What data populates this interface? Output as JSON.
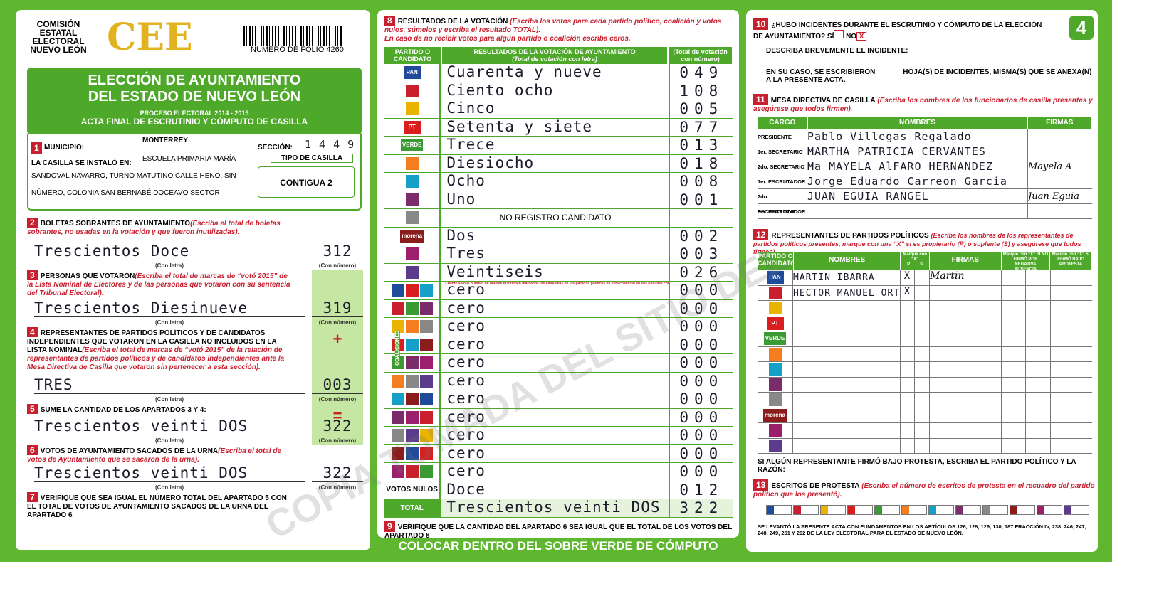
{
  "header": {
    "org": [
      "COMISIÓN",
      "ESTATAL",
      "ELECTORAL",
      "NUEVO LEÓN"
    ],
    "logo": "CEE",
    "folio": "NUMERO DE FOLIO 4260",
    "page": "4"
  },
  "left": {
    "title": [
      "ELECCIÓN DE AYUNTAMIENTO",
      "DEL ESTADO DE NUEVO LEÓN"
    ],
    "process": "PROCESO ELECTORAL  2014 - 2015",
    "act": "ACTA FINAL DE ESCRUTINIO Y CÓMPUTO DE CASILLA",
    "s1": {
      "num": "1",
      "municipio_label": "MUNICIPIO:",
      "municipio": "MONTERREY",
      "seccion_label": "SECCIÓN:",
      "seccion": "1 4 4 9",
      "casilla_label": "LA CASILLA SE INSTALÓ EN:",
      "address": [
        "ESCUELA PRIMARIA MARÍA",
        "SANDOVAL NAVARRO, TURNO MATUTINO CALLE HENO, SIN",
        "NÚMERO, COLONIA SAN BERNABÉ DOCEAVO SECTOR"
      ],
      "tipo_label": "TIPO DE CASILLA",
      "tipo": "CONTIGUA 2"
    },
    "con_letra": "(Con letra)",
    "con_numero": "(Con número)",
    "sections": [
      {
        "num": "2",
        "title": "BOLETAS SOBRANTES DE AYUNTAMIENTO",
        "note": "(Escriba el total de boletas sobrantes, no usadas en la votación y que fueron inutilizadas).",
        "letra": "Trescientos Doce",
        "numero": "312"
      },
      {
        "num": "3",
        "title": "PERSONAS QUE VOTARON",
        "note": "(Escriba el total de marcas de “votó 2015” de la Lista Nominal de Electores y de las personas que votaron con su sentencia del Tribunal Electoral).",
        "letra": "Trescientos Diesinueve",
        "numero": "319"
      },
      {
        "num": "4",
        "title": "REPRESENTANTES DE PARTIDOS POLÍTICOS Y DE CANDIDATOS INDEPENDIENTES QUE VOTARON EN LA CASILLA NO INCLUIDOS EN LA LISTA NOMINAL",
        "note": "(Escriba el total de marcas de “votó 2015” de la relación de representantes de partidos políticos y de candidatos independientes ante la Mesa Directiva de Casilla que votaron sin pertenecer a esta sección).",
        "sign": "+",
        "letra": "TRES",
        "numero": "003"
      },
      {
        "num": "5",
        "title": "SUME LA CANTIDAD DE LOS APARTADOS 3 Y 4:",
        "sign": "=",
        "letra": "Trescientos veinti DOS",
        "numero": "322"
      },
      {
        "num": "6",
        "title": "VOTOS DE AYUNTAMIENTO SACADOS DE LA URNA",
        "note": "(Escriba el total de votos de Ayuntamiento que se sacaron de la urna).",
        "letra": "Trescientos veinti DOS",
        "numero": "322"
      },
      {
        "num": "7",
        "title": "VERIFIQUE QUE SEA IGUAL EL NÚMERO TOTAL DEL APARTADO 5 CON EL TOTAL DE VOTOS DE AYUNTAMIENTO SACADOS DE LA URNA DEL APARTADO 6"
      }
    ]
  },
  "middle": {
    "num": "8",
    "title": "RESULTADOS DE LA VOTACIÓN",
    "note": "(Escriba los votos para cada partido político, coalición y votos nulos, súmelos y escriba el resultado TOTAL).",
    "note2": "En caso de no recibir votos para algún partido o coalición escriba ceros.",
    "headers": [
      "PARTIDO O CANDIDATO",
      "RESULTADOS DE LA VOTACIÓN DE AYUNTAMIENTO",
      "(Total de votación con letra)",
      "(Total de votación con número)"
    ],
    "coalitions_label": "COALICIONES",
    "rows": [
      {
        "logo": "PAN",
        "letra": "Cuarenta y nueve",
        "numero": "049"
      },
      {
        "letra": "Ciento ocho",
        "numero": "108"
      },
      {
        "letra": "Cinco",
        "numero": "005"
      },
      {
        "logo": "PT",
        "letra": "Setenta y siete",
        "numero": "077"
      },
      {
        "logo": "VERDE",
        "letra": "Trece",
        "numero": "013"
      },
      {
        "letra": "Diesiocho",
        "numero": "018"
      },
      {
        "letra": "Ocho",
        "numero": "008"
      },
      {
        "letra": "Uno",
        "numero": "001"
      },
      {
        "note": "NO REGISTRO CANDIDATO"
      },
      {
        "logo": "morena",
        "letra": "Dos",
        "numero": "002"
      },
      {
        "letra": "Tres",
        "numero": "003"
      },
      {
        "letra": "Veintiseis",
        "numero": "026"
      },
      {
        "note": "Cuente solo el número de boletas que tienen marcados los emblemas de los partidos políticos de esta coalición en sus posibles combinaciones",
        "letra": "cero",
        "numero": "000"
      },
      {
        "letra": "cero",
        "numero": "000"
      },
      {
        "letra": "cero",
        "numero": "000"
      },
      {
        "letra": "cero",
        "numero": "000"
      },
      {
        "letra": "cero",
        "numero": "000"
      },
      {
        "letra": "cero",
        "numero": "000"
      },
      {
        "letra": "cero",
        "numero": "000"
      },
      {
        "letra": "cero",
        "numero": "000"
      },
      {
        "letra": "cero",
        "numero": "000"
      },
      {
        "letra": "cero",
        "numero": "000"
      },
      {
        "letra": "cero",
        "numero": "000"
      },
      {
        "label": "VOTOS NULOS",
        "letra": "Doce",
        "numero": "012"
      },
      {
        "label": "TOTAL",
        "letra": "Trescientos veinti DOS",
        "numero": "322"
      }
    ],
    "s9": {
      "num": "9",
      "text": "VERIFIQUE QUE LA CANTIDAD DEL APARTADO 6 SEA IGUAL QUE EL TOTAL DE LOS VOTOS DEL APARTADO 8"
    },
    "footer": "COLOCAR DENTRO DEL SOBRE VERDE DE CÓMPUTO"
  },
  "right": {
    "s10": {
      "num": "10",
      "question": "¿HUBO INCIDENTES DURANTE EL ESCRUTINIO Y CÓMPUTO DE LA ELECCIÓN DE AYUNTAMIENTO?",
      "si": "SÍ",
      "no": "NO",
      "mark": "X",
      "describe": "DESCRIBA BREVEMENTE EL INCIDENTE:",
      "hojas": "EN SU CASO, SE ESCRIBIERON ______ HOJA(S) DE INCIDENTES, MISMA(S) QUE SE ANEXA(N) A LA PRESENTE ACTA."
    },
    "s11": {
      "num": "11",
      "title": "MESA DIRECTIVA DE CASILLA",
      "note": "(Escriba los nombres de los funcionarios de casilla presentes y asegúrese que todos firmen).",
      "headers": [
        "CARGO",
        "NOMBRES",
        "FIRMAS"
      ],
      "rows": [
        {
          "cargo": "PRESIDENTE",
          "nombre": "Pablo Villegas Regalado"
        },
        {
          "cargo": "1er. SECRETARIO",
          "nombre": "MARTHA PATRICIA CERVANTES"
        },
        {
          "cargo": "2do. SECRETARIO",
          "nombre": "Ma MAYELA AlFARO HERNANDEZ",
          "firma": "Mayela A"
        },
        {
          "cargo": "1er. ESCRUTADOR",
          "nombre": "Jorge Eduardo Carreon Garcia"
        },
        {
          "cargo": "2do. ESCRUTADOR",
          "nombre": "JUAN EGUIA RANGEL",
          "firma": "Juan Eguia"
        },
        {
          "cargo": "3er. ESCRUTADOR"
        }
      ]
    },
    "s12": {
      "num": "12",
      "title": "REPRESENTANTES DE PARTIDOS POLÍTICOS",
      "note": "(Escriba los nombres de los representantes de partidos políticos presentes, marque con una “X” si es propietario (P) o suplente (S) y asegúrese que todos firmen).",
      "headers": [
        "PARTIDO O CANDIDATO",
        "NOMBRES",
        "Marque con “X”",
        "P",
        "S",
        "FIRMAS",
        "Marque con “X” SI NO FIRMÓ POR",
        "NEGATIVA",
        "AUSENCIA",
        "Marque con “X” SI FIRMÓ BAJO PROTESTA"
      ],
      "rows": [
        {
          "logo": "PAN",
          "nombre": "MARTIN IBARRA",
          "p": "X",
          "firma": "Martin"
        },
        {
          "nombre": "HECTOR MANUEL ORTIZ",
          "p": "X"
        },
        {},
        {
          "logo": "PT"
        },
        {
          "logo": "VERDE"
        },
        {},
        {},
        {},
        {},
        {
          "logo": "morena"
        },
        {},
        {}
      ]
    },
    "protest": "SI ALGÚN REPRESENTANTE FIRMÓ BAJO PROTESTA, ESCRIBA EL PARTIDO POLÍTICO Y LA RAZÓN:",
    "s13": {
      "num": "13",
      "title": "ESCRITOS DE PROTESTA",
      "note": "(Escriba el número de escritos de protesta en el recuadro del partido político que los presentó)."
    },
    "legal": "SE LEVANTÓ LA PRESENTE ACTA CON FUNDAMENTOS EN LOS ARTÍCULOS 126, 128, 129, 130, 187 FRACCIÓN IV, 238, 246, 247, 248, 249, 251 Y 292 DE LA LEY ELECTORAL PARA EL ESTADO DE NUEVO LEÓN."
  },
  "watermark": "COPIA TOMADA DEL SITIO DEL"
}
